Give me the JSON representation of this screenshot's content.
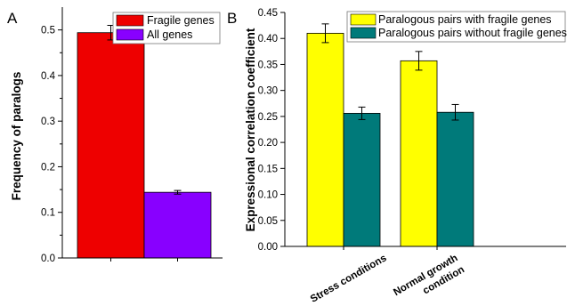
{
  "chart_data": [
    {
      "panel_label": "A",
      "type": "bar",
      "categories": [
        "Fragile genes",
        "All genes"
      ],
      "values": [
        0.494,
        0.144
      ],
      "errors": [
        0.016,
        0.004
      ],
      "colors": [
        "#ee0000",
        "#8800ff"
      ],
      "legend": [
        "Fragile genes",
        "All genes"
      ],
      "legend_position": "top-right",
      "xlabel": "",
      "ylabel": "Frequency of paralogs",
      "ylim": [
        0.0,
        0.55
      ],
      "yticks": [
        "0.0",
        "0.1",
        "0.2",
        "0.3",
        "0.4",
        "0.5"
      ],
      "grid": false
    },
    {
      "panel_label": "B",
      "type": "bar",
      "categories": [
        "Stress conditions",
        "Normal growth condition"
      ],
      "category_lines": [
        [
          "Stress conditions"
        ],
        [
          "Normal growth",
          "condition"
        ]
      ],
      "series": [
        {
          "name": "Paralogous pairs with fragile genes",
          "values": [
            0.41,
            0.357
          ],
          "errors": [
            0.018,
            0.018
          ],
          "color": "#ffff00"
        },
        {
          "name": "Paralogous pairs without fragile genes",
          "values": [
            0.256,
            0.258
          ],
          "errors": [
            0.012,
            0.015
          ],
          "color": "#007a7a"
        }
      ],
      "legend_position": "top-right",
      "xlabel": "",
      "ylabel": "Expressional correlation coefficient",
      "ylim": [
        0.0,
        0.45
      ],
      "yticks": [
        "0.00",
        "0.05",
        "0.10",
        "0.15",
        "0.20",
        "0.25",
        "0.30",
        "0.35",
        "0.40",
        "0.45"
      ],
      "grid": false
    }
  ]
}
